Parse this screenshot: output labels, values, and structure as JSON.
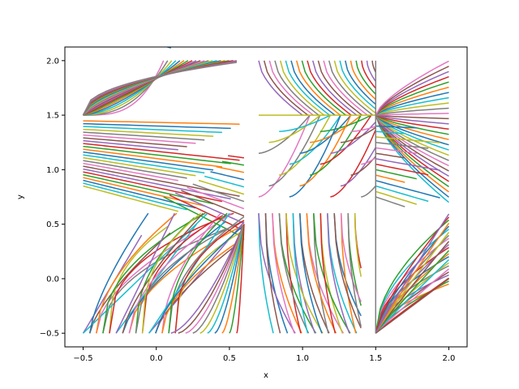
{
  "chart_data": {
    "type": "line",
    "xlabel": "x",
    "ylabel": "y",
    "xlim": [
      -0.625,
      2.125
    ],
    "ylim": [
      -0.625,
      2.125
    ],
    "xticks": [
      -0.5,
      0.0,
      0.5,
      1.0,
      1.5,
      2.0
    ],
    "yticks": [
      -0.5,
      0.0,
      0.5,
      1.0,
      1.5,
      2.0
    ],
    "xtick_labels": [
      "−0.5",
      "0.0",
      "0.5",
      "1.0",
      "1.5",
      "2.0"
    ],
    "ytick_labels": [
      "−0.5",
      "0.0",
      "0.5",
      "1.0",
      "1.5",
      "2.0"
    ],
    "grid": false,
    "palette": [
      "#1f77b4",
      "#ff7f0e",
      "#2ca02c",
      "#d62728",
      "#9467bd",
      "#8c564b",
      "#e377c2",
      "#7f7f7f",
      "#bcbd22",
      "#17becf"
    ],
    "description_note": "",
    "regions": [
      {
        "name": "left-upper",
        "x_range": [
          -0.5,
          0.6
        ],
        "y_range": [
          0.7,
          2.0
        ],
        "pattern": "converge-right-to-1.5"
      },
      {
        "name": "left-lower",
        "x_range": [
          -0.5,
          0.6
        ],
        "y_range": [
          -0.5,
          0.6
        ],
        "pattern": "rising-curves"
      },
      {
        "name": "mid-upper",
        "x_range": [
          0.7,
          1.5
        ],
        "y_range": [
          0.7,
          2.0
        ],
        "pattern": "curves-toward-1.5"
      },
      {
        "name": "mid-lower",
        "x_range": [
          0.7,
          1.4
        ],
        "y_range": [
          -0.5,
          0.6
        ],
        "pattern": "falling-curves"
      },
      {
        "name": "right-upper",
        "x_range": [
          1.5,
          2.0
        ],
        "y_range": [
          0.7,
          2.0
        ],
        "pattern": "fan-from-1.5"
      },
      {
        "name": "right-lower",
        "x_range": [
          1.5,
          2.0
        ],
        "y_range": [
          -0.5,
          0.6
        ],
        "pattern": "rising-fan"
      }
    ]
  }
}
